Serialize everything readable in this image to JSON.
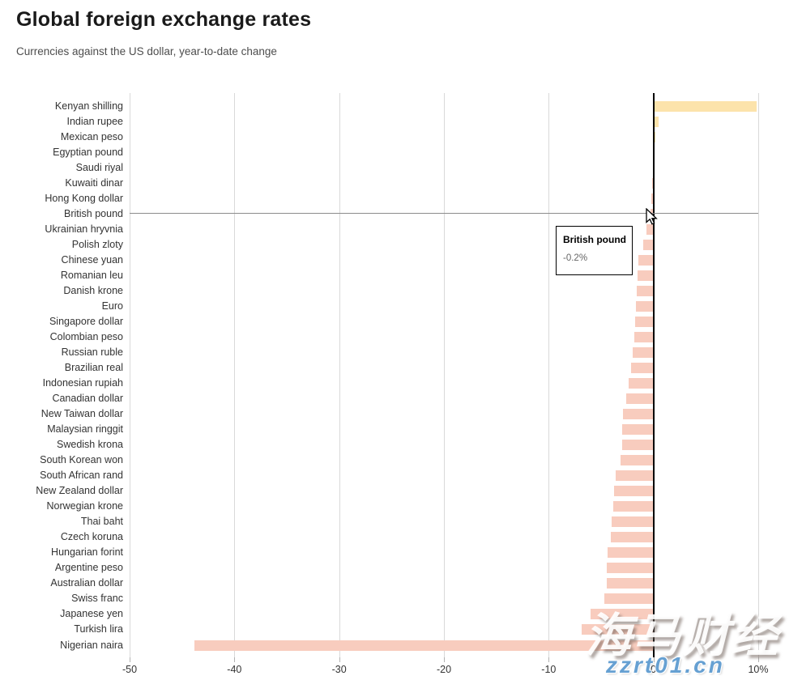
{
  "header": {
    "title": "Global foreign exchange rates",
    "subtitle": "Currencies against the US dollar, year-to-date change"
  },
  "chart_data": {
    "type": "bar",
    "orientation": "horizontal",
    "title": "Global foreign exchange rates",
    "subtitle": "Currencies against the US dollar, year-to-date change",
    "xlabel": "",
    "ylabel": "",
    "unit": "%",
    "xlim": [
      -50,
      10
    ],
    "grid": true,
    "x_tick_values": [
      -50,
      -40,
      -30,
      -20,
      -10,
      0,
      10
    ],
    "x_tick_labels": [
      "-50",
      "-40",
      "-30",
      "-20",
      "-10",
      "0",
      "10%"
    ],
    "categories": [
      "Kenyan shilling",
      "Indian rupee",
      "Mexican peso",
      "Egyptian pound",
      "Saudi riyal",
      "Kuwaiti dinar",
      "Hong Kong dollar",
      "British pound",
      "Ukrainian hryvnia",
      "Polish zloty",
      "Chinese yuan",
      "Romanian leu",
      "Danish krone",
      "Euro",
      "Singapore dollar",
      "Colombian peso",
      "Russian ruble",
      "Brazilian real",
      "Indonesian rupiah",
      "Canadian dollar",
      "New Taiwan dollar",
      "Malaysian ringgit",
      "Swedish krona",
      "South Korean won",
      "South African rand",
      "New Zealand dollar",
      "Norwegian krone",
      "Thai baht",
      "Czech koruna",
      "Hungarian forint",
      "Argentine peso",
      "Australian dollar",
      "Swiss franc",
      "Japanese yen",
      "Turkish lira",
      "Nigerian naira"
    ],
    "values": [
      9.8,
      0.4,
      0.1,
      0.0,
      0.0,
      -0.05,
      -0.1,
      -0.2,
      -0.6,
      -0.9,
      -1.4,
      -1.45,
      -1.55,
      -1.6,
      -1.7,
      -1.75,
      -1.9,
      -2.1,
      -2.3,
      -2.55,
      -2.8,
      -2.9,
      -2.95,
      -3.05,
      -3.55,
      -3.65,
      -3.8,
      -3.95,
      -4.0,
      -4.3,
      -4.35,
      -4.4,
      -4.6,
      -5.9,
      -6.8,
      -43.7
    ],
    "colors": {
      "positive_bar": "#fce3ab",
      "negative_bar": "#f8ccbe",
      "zero_line": "#000000",
      "gridline": "#d9d9d9",
      "crosshair_line": "#8c8c8c",
      "label_text": "#333333"
    },
    "legend": []
  },
  "tooltip": {
    "label": "British pound",
    "value": "-0.2%"
  },
  "watermarks": {
    "primary": "海马财经",
    "secondary": "zzrt01.cn"
  }
}
